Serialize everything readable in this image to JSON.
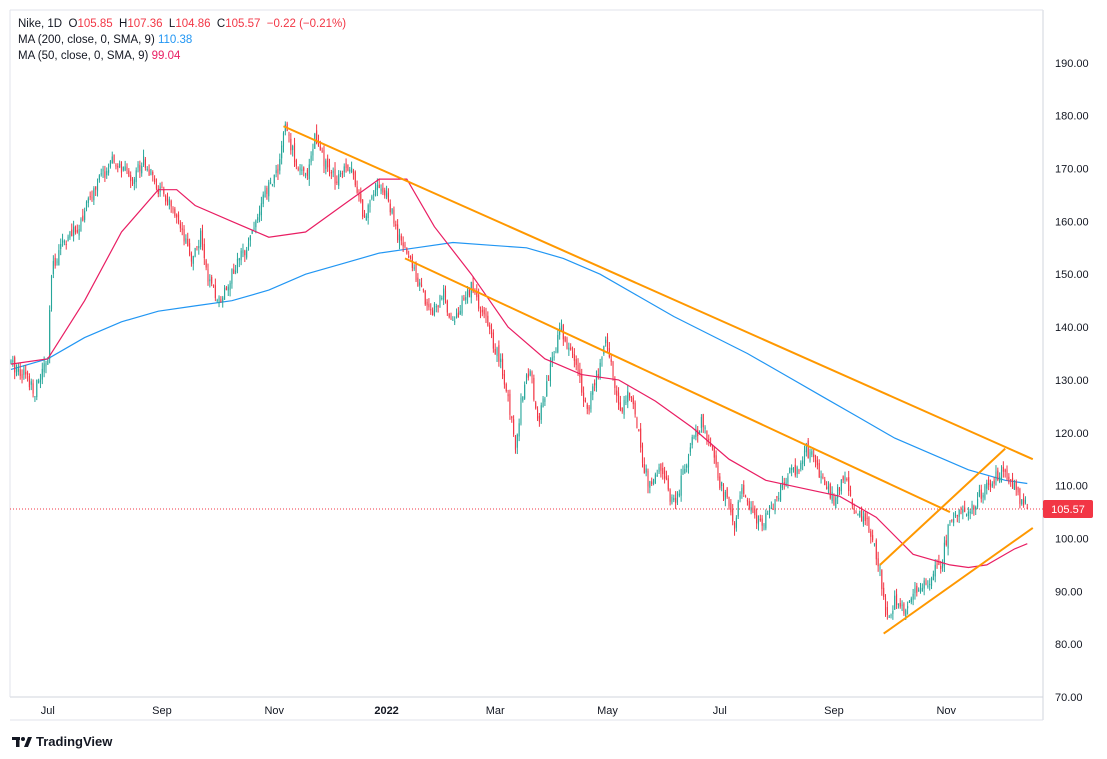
{
  "legend": {
    "symbol": "Nike",
    "interval": "1D",
    "open_label": "O",
    "open": "105.85",
    "high_label": "H",
    "high": "107.36",
    "low_label": "L",
    "low": "104.86",
    "close_label": "C",
    "close": "105.57",
    "change": "−0.22 (−0.21%)",
    "ma200_label": "MA (200, close, 0, SMA, 9)",
    "ma200_value": "110.38",
    "ma50_label": "MA (50, close, 0, SMA, 9)",
    "ma50_value": "99.04"
  },
  "brand": "TradingView",
  "colors": {
    "up": "#26a69a",
    "down": "#f23645",
    "ma200": "#2196f3",
    "ma50": "#e91e63",
    "trend": "#ff9800",
    "last": "#f23645"
  },
  "chart_data": {
    "type": "candlestick",
    "title": "Nike 1D",
    "ylim": [
      70,
      200
    ],
    "y_ticks": [
      "190.00",
      "180.00",
      "170.00",
      "160.00",
      "150.00",
      "140.00",
      "130.00",
      "120.00",
      "110.00",
      "100.00",
      "90.00",
      "80.00",
      "70.00"
    ],
    "x_ticks": [
      {
        "label": "Jul",
        "day": 20,
        "bold": false
      },
      {
        "label": "Sep",
        "day": 82,
        "bold": false
      },
      {
        "label": "Nov",
        "day": 143,
        "bold": false
      },
      {
        "label": "2022",
        "day": 204,
        "bold": true
      },
      {
        "label": "Mar",
        "day": 263,
        "bold": false
      },
      {
        "label": "May",
        "day": 324,
        "bold": false
      },
      {
        "label": "Jul",
        "day": 385,
        "bold": false
      },
      {
        "label": "Sep",
        "day": 447,
        "bold": false
      },
      {
        "label": "Nov",
        "day": 508,
        "bold": false
      }
    ],
    "last_price": 105.57,
    "last_price_label": "105.57",
    "price_path": [
      [
        0,
        133
      ],
      [
        8,
        131
      ],
      [
        13,
        128
      ],
      [
        20,
        134
      ],
      [
        22,
        150
      ],
      [
        27,
        156
      ],
      [
        35,
        158
      ],
      [
        40,
        162
      ],
      [
        48,
        168
      ],
      [
        55,
        171
      ],
      [
        60,
        170
      ],
      [
        66,
        168
      ],
      [
        72,
        172
      ],
      [
        78,
        167
      ],
      [
        85,
        164
      ],
      [
        92,
        158
      ],
      [
        98,
        153
      ],
      [
        103,
        157
      ],
      [
        108,
        148
      ],
      [
        113,
        145
      ],
      [
        120,
        150
      ],
      [
        126,
        154
      ],
      [
        133,
        160
      ],
      [
        138,
        165
      ],
      [
        145,
        170
      ],
      [
        149,
        178
      ],
      [
        154,
        172
      ],
      [
        160,
        168
      ],
      [
        165,
        176
      ],
      [
        170,
        171
      ],
      [
        176,
        168
      ],
      [
        182,
        171
      ],
      [
        187,
        168
      ],
      [
        192,
        160
      ],
      [
        196,
        166
      ],
      [
        200,
        167
      ],
      [
        205,
        164
      ],
      [
        210,
        157
      ],
      [
        215,
        154
      ],
      [
        220,
        150
      ],
      [
        224,
        146
      ],
      [
        228,
        143
      ],
      [
        235,
        146
      ],
      [
        240,
        141
      ],
      [
        245,
        144
      ],
      [
        250,
        148
      ],
      [
        254,
        144
      ],
      [
        258,
        141
      ],
      [
        262,
        137
      ],
      [
        266,
        133
      ],
      [
        270,
        126
      ],
      [
        274,
        118
      ],
      [
        278,
        128
      ],
      [
        282,
        132
      ],
      [
        286,
        122
      ],
      [
        290,
        127
      ],
      [
        295,
        135
      ],
      [
        298,
        140
      ],
      [
        303,
        136
      ],
      [
        308,
        132
      ],
      [
        313,
        124
      ],
      [
        318,
        130
      ],
      [
        323,
        138
      ],
      [
        327,
        131
      ],
      [
        331,
        124
      ],
      [
        335,
        128
      ],
      [
        340,
        122
      ],
      [
        344,
        113
      ],
      [
        348,
        109
      ],
      [
        352,
        114
      ],
      [
        357,
        109
      ],
      [
        361,
        106
      ],
      [
        366,
        114
      ],
      [
        370,
        118
      ],
      [
        375,
        122
      ],
      [
        380,
        118
      ],
      [
        384,
        111
      ],
      [
        388,
        108
      ],
      [
        393,
        103
      ],
      [
        397,
        109
      ],
      [
        402,
        105
      ],
      [
        408,
        102
      ],
      [
        413,
        106
      ],
      [
        418,
        109
      ],
      [
        422,
        112
      ],
      [
        427,
        113
      ],
      [
        432,
        117
      ],
      [
        436,
        115
      ],
      [
        441,
        111
      ],
      [
        447,
        107
      ],
      [
        452,
        112
      ],
      [
        457,
        107
      ],
      [
        461,
        104
      ],
      [
        466,
        102
      ],
      [
        471,
        96
      ],
      [
        476,
        85
      ],
      [
        480,
        88
      ],
      [
        486,
        86
      ],
      [
        490,
        89
      ],
      [
        495,
        91
      ],
      [
        500,
        93
      ],
      [
        505,
        95
      ],
      [
        510,
        103
      ],
      [
        515,
        106
      ],
      [
        520,
        105
      ],
      [
        524,
        107
      ],
      [
        530,
        110
      ],
      [
        536,
        112
      ],
      [
        541,
        112
      ],
      [
        545,
        110
      ],
      [
        549,
        107
      ],
      [
        552,
        105.57
      ]
    ],
    "ma200": [
      [
        0,
        132
      ],
      [
        20,
        134
      ],
      [
        40,
        138
      ],
      [
        60,
        141
      ],
      [
        80,
        143
      ],
      [
        100,
        144
      ],
      [
        120,
        145
      ],
      [
        140,
        147
      ],
      [
        160,
        150
      ],
      [
        180,
        152
      ],
      [
        200,
        154
      ],
      [
        220,
        155
      ],
      [
        240,
        156
      ],
      [
        260,
        155.5
      ],
      [
        280,
        155
      ],
      [
        300,
        153
      ],
      [
        320,
        150
      ],
      [
        340,
        146
      ],
      [
        360,
        142
      ],
      [
        380,
        138.5
      ],
      [
        400,
        135
      ],
      [
        420,
        131
      ],
      [
        440,
        127
      ],
      [
        460,
        123
      ],
      [
        480,
        119
      ],
      [
        500,
        116
      ],
      [
        520,
        113
      ],
      [
        540,
        111
      ],
      [
        552,
        110.4
      ]
    ],
    "ma50": [
      [
        0,
        133
      ],
      [
        20,
        134
      ],
      [
        40,
        145
      ],
      [
        60,
        158
      ],
      [
        80,
        166
      ],
      [
        90,
        166
      ],
      [
        100,
        163
      ],
      [
        120,
        160
      ],
      [
        140,
        157
      ],
      [
        160,
        158
      ],
      [
        180,
        163
      ],
      [
        200,
        168
      ],
      [
        215,
        168
      ],
      [
        230,
        159
      ],
      [
        250,
        150
      ],
      [
        270,
        140
      ],
      [
        290,
        134
      ],
      [
        310,
        131
      ],
      [
        330,
        130
      ],
      [
        350,
        126
      ],
      [
        370,
        121
      ],
      [
        390,
        115
      ],
      [
        410,
        111
      ],
      [
        430,
        109.5
      ],
      [
        450,
        108
      ],
      [
        470,
        104
      ],
      [
        490,
        97
      ],
      [
        510,
        95
      ],
      [
        520,
        94.5
      ],
      [
        530,
        95
      ],
      [
        545,
        98
      ],
      [
        552,
        99
      ]
    ],
    "trendlines": [
      {
        "name": "upper-downtrend",
        "from": [
          148,
          178
        ],
        "to": [
          555,
          115
        ]
      },
      {
        "name": "middle-downtrend",
        "from": [
          214,
          153
        ],
        "to": [
          510,
          105
        ]
      },
      {
        "name": "channel-upper",
        "from": [
          472,
          95
        ],
        "to": [
          540,
          117
        ]
      },
      {
        "name": "channel-lower",
        "from": [
          474,
          82
        ],
        "to": [
          555,
          102
        ]
      }
    ]
  }
}
